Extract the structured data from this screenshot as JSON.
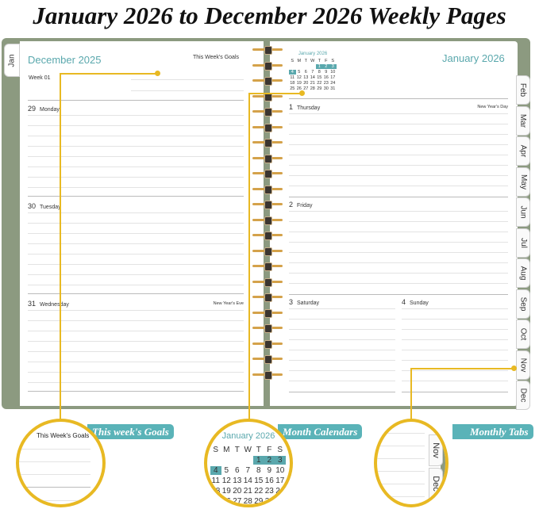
{
  "title": "January 2026 to December 2026 Weekly Pages",
  "colors": {
    "accent": "#5aa8ad",
    "callout": "#e8b923",
    "cover": "#8c9a80",
    "label_bg": "#5ab3b8"
  },
  "left_page": {
    "month": "December 2025",
    "goals_label": "This Week's Goals",
    "week": "Week 01",
    "tab": "Jan",
    "days": [
      {
        "num": "29",
        "name": "Monday",
        "note": ""
      },
      {
        "num": "30",
        "name": "Tuesday",
        "note": ""
      },
      {
        "num": "31",
        "name": "Wednesday",
        "note": "New Year's Eve"
      }
    ]
  },
  "right_page": {
    "month": "January 2026",
    "mini_calendar": {
      "title": "January 2026",
      "weekdays": [
        "S",
        "M",
        "T",
        "W",
        "T",
        "F",
        "S"
      ],
      "cells": [
        "",
        "",
        "",
        "",
        "1",
        "2",
        "3",
        "4",
        "5",
        "6",
        "7",
        "8",
        "9",
        "10",
        "11",
        "12",
        "13",
        "14",
        "15",
        "16",
        "17",
        "18",
        "19",
        "20",
        "21",
        "22",
        "23",
        "24",
        "25",
        "26",
        "27",
        "28",
        "29",
        "30",
        "31"
      ],
      "highlighted": [
        "1",
        "2",
        "3",
        "4"
      ]
    },
    "days": [
      {
        "num": "1",
        "name": "Thursday",
        "note": "New Year's Day"
      },
      {
        "num": "2",
        "name": "Friday",
        "note": ""
      },
      {
        "num": "3",
        "name": "Saturday",
        "note": ""
      },
      {
        "num": "4",
        "name": "Sunday",
        "note": ""
      }
    ]
  },
  "tabs": [
    "Feb",
    "Mar",
    "Apr",
    "May",
    "Jun",
    "Jul",
    "Aug",
    "Sep",
    "Oct",
    "Nov",
    "Dec"
  ],
  "callouts": {
    "goals": {
      "label": "This week's Goals",
      "zoom_text": "This Week's Goals"
    },
    "calendar": {
      "label": "Month Calendars"
    },
    "tabs": {
      "label": "Monthly Tabs",
      "zoom_tabs": [
        "Nov",
        "Dec"
      ]
    }
  }
}
